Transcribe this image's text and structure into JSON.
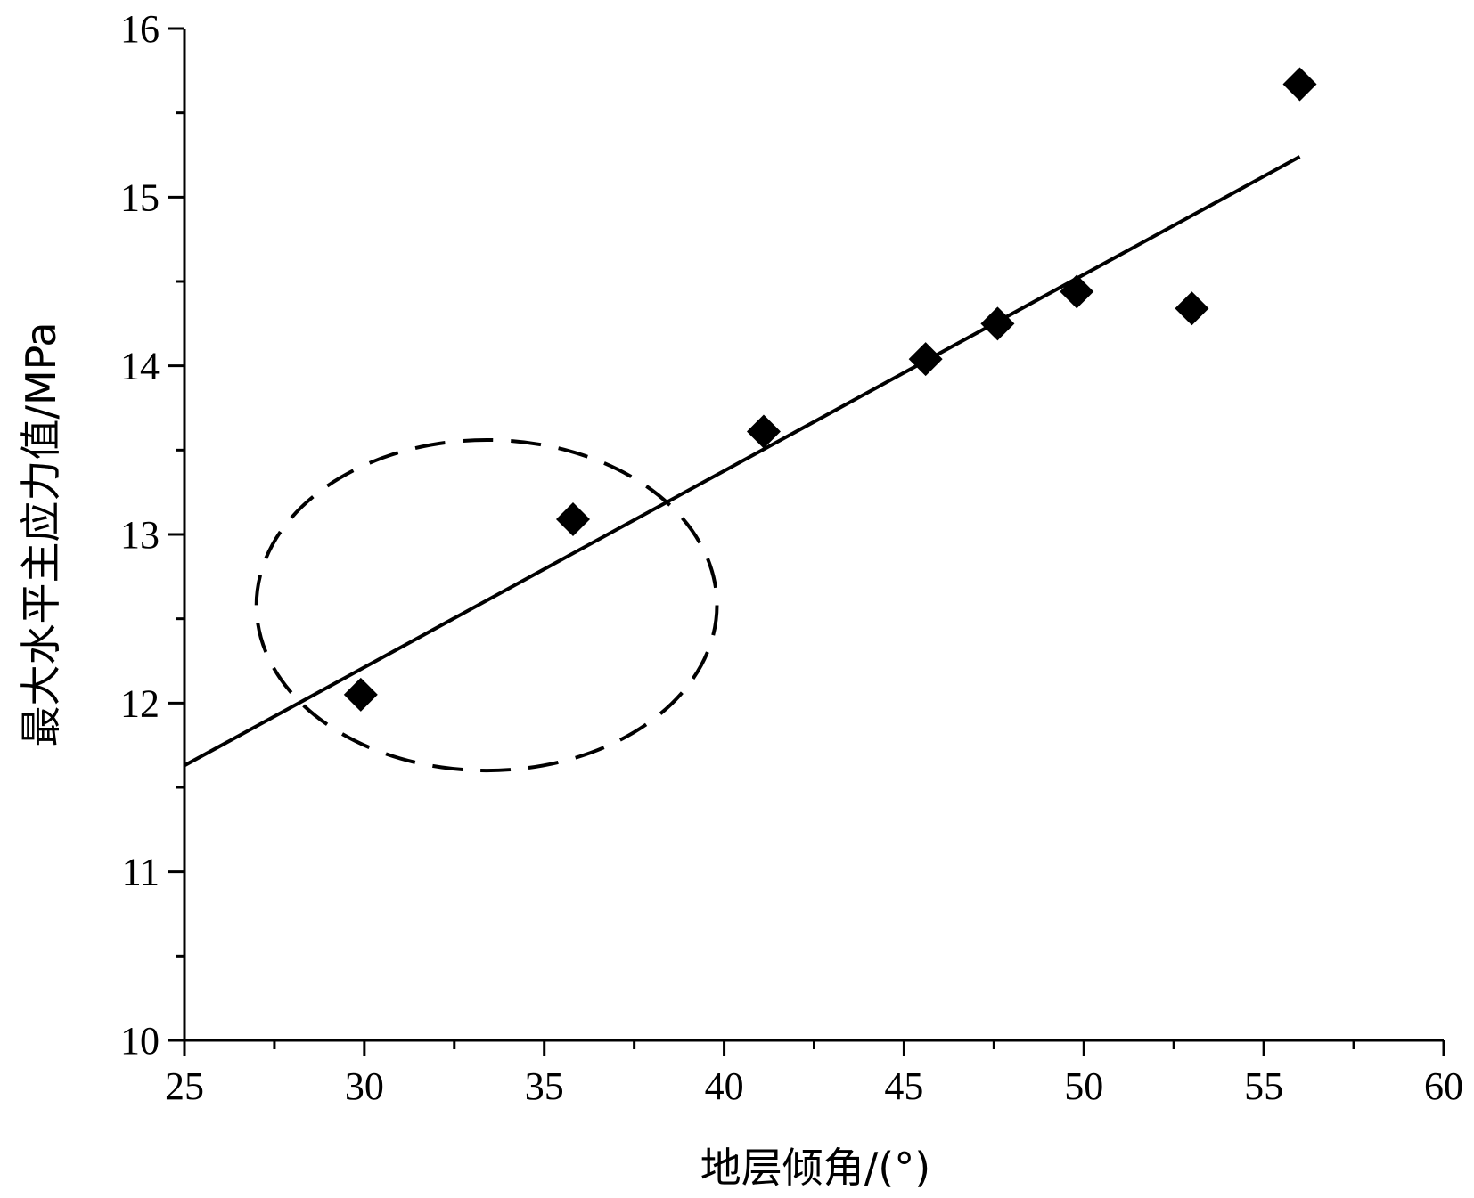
{
  "chart_data": {
    "type": "scatter",
    "xlabel": "地层倾角/(°)",
    "ylabel": "最大水平主应力值/MPa",
    "xlim": [
      25,
      60
    ],
    "ylim": [
      10,
      16
    ],
    "x_ticks": [
      "25",
      "30",
      "35",
      "40",
      "45",
      "50",
      "55",
      "60"
    ],
    "y_ticks": [
      "10",
      "11",
      "12",
      "13",
      "14",
      "15",
      "16"
    ],
    "grid": false,
    "legend": "none",
    "marker": "diamond",
    "marker_color": "#000000",
    "series": [
      {
        "points": [
          {
            "x": 29.9,
            "y": 12.05
          },
          {
            "x": 35.8,
            "y": 13.09
          },
          {
            "x": 41.1,
            "y": 13.61
          },
          {
            "x": 45.6,
            "y": 14.04
          },
          {
            "x": 47.6,
            "y": 14.25
          },
          {
            "x": 49.8,
            "y": 14.44
          },
          {
            "x": 53.0,
            "y": 14.34
          },
          {
            "x": 56.0,
            "y": 15.67
          }
        ]
      }
    ],
    "trendline": {
      "type": "linear",
      "start": {
        "x": 25,
        "y": 11.63
      },
      "end": {
        "x": 56,
        "y": 15.24
      }
    },
    "annotation_ellipse": {
      "style": "dashed",
      "center": {
        "x": 33.4,
        "y": 12.58
      },
      "radius_x": 6.4,
      "radius_y": 0.98
    }
  }
}
